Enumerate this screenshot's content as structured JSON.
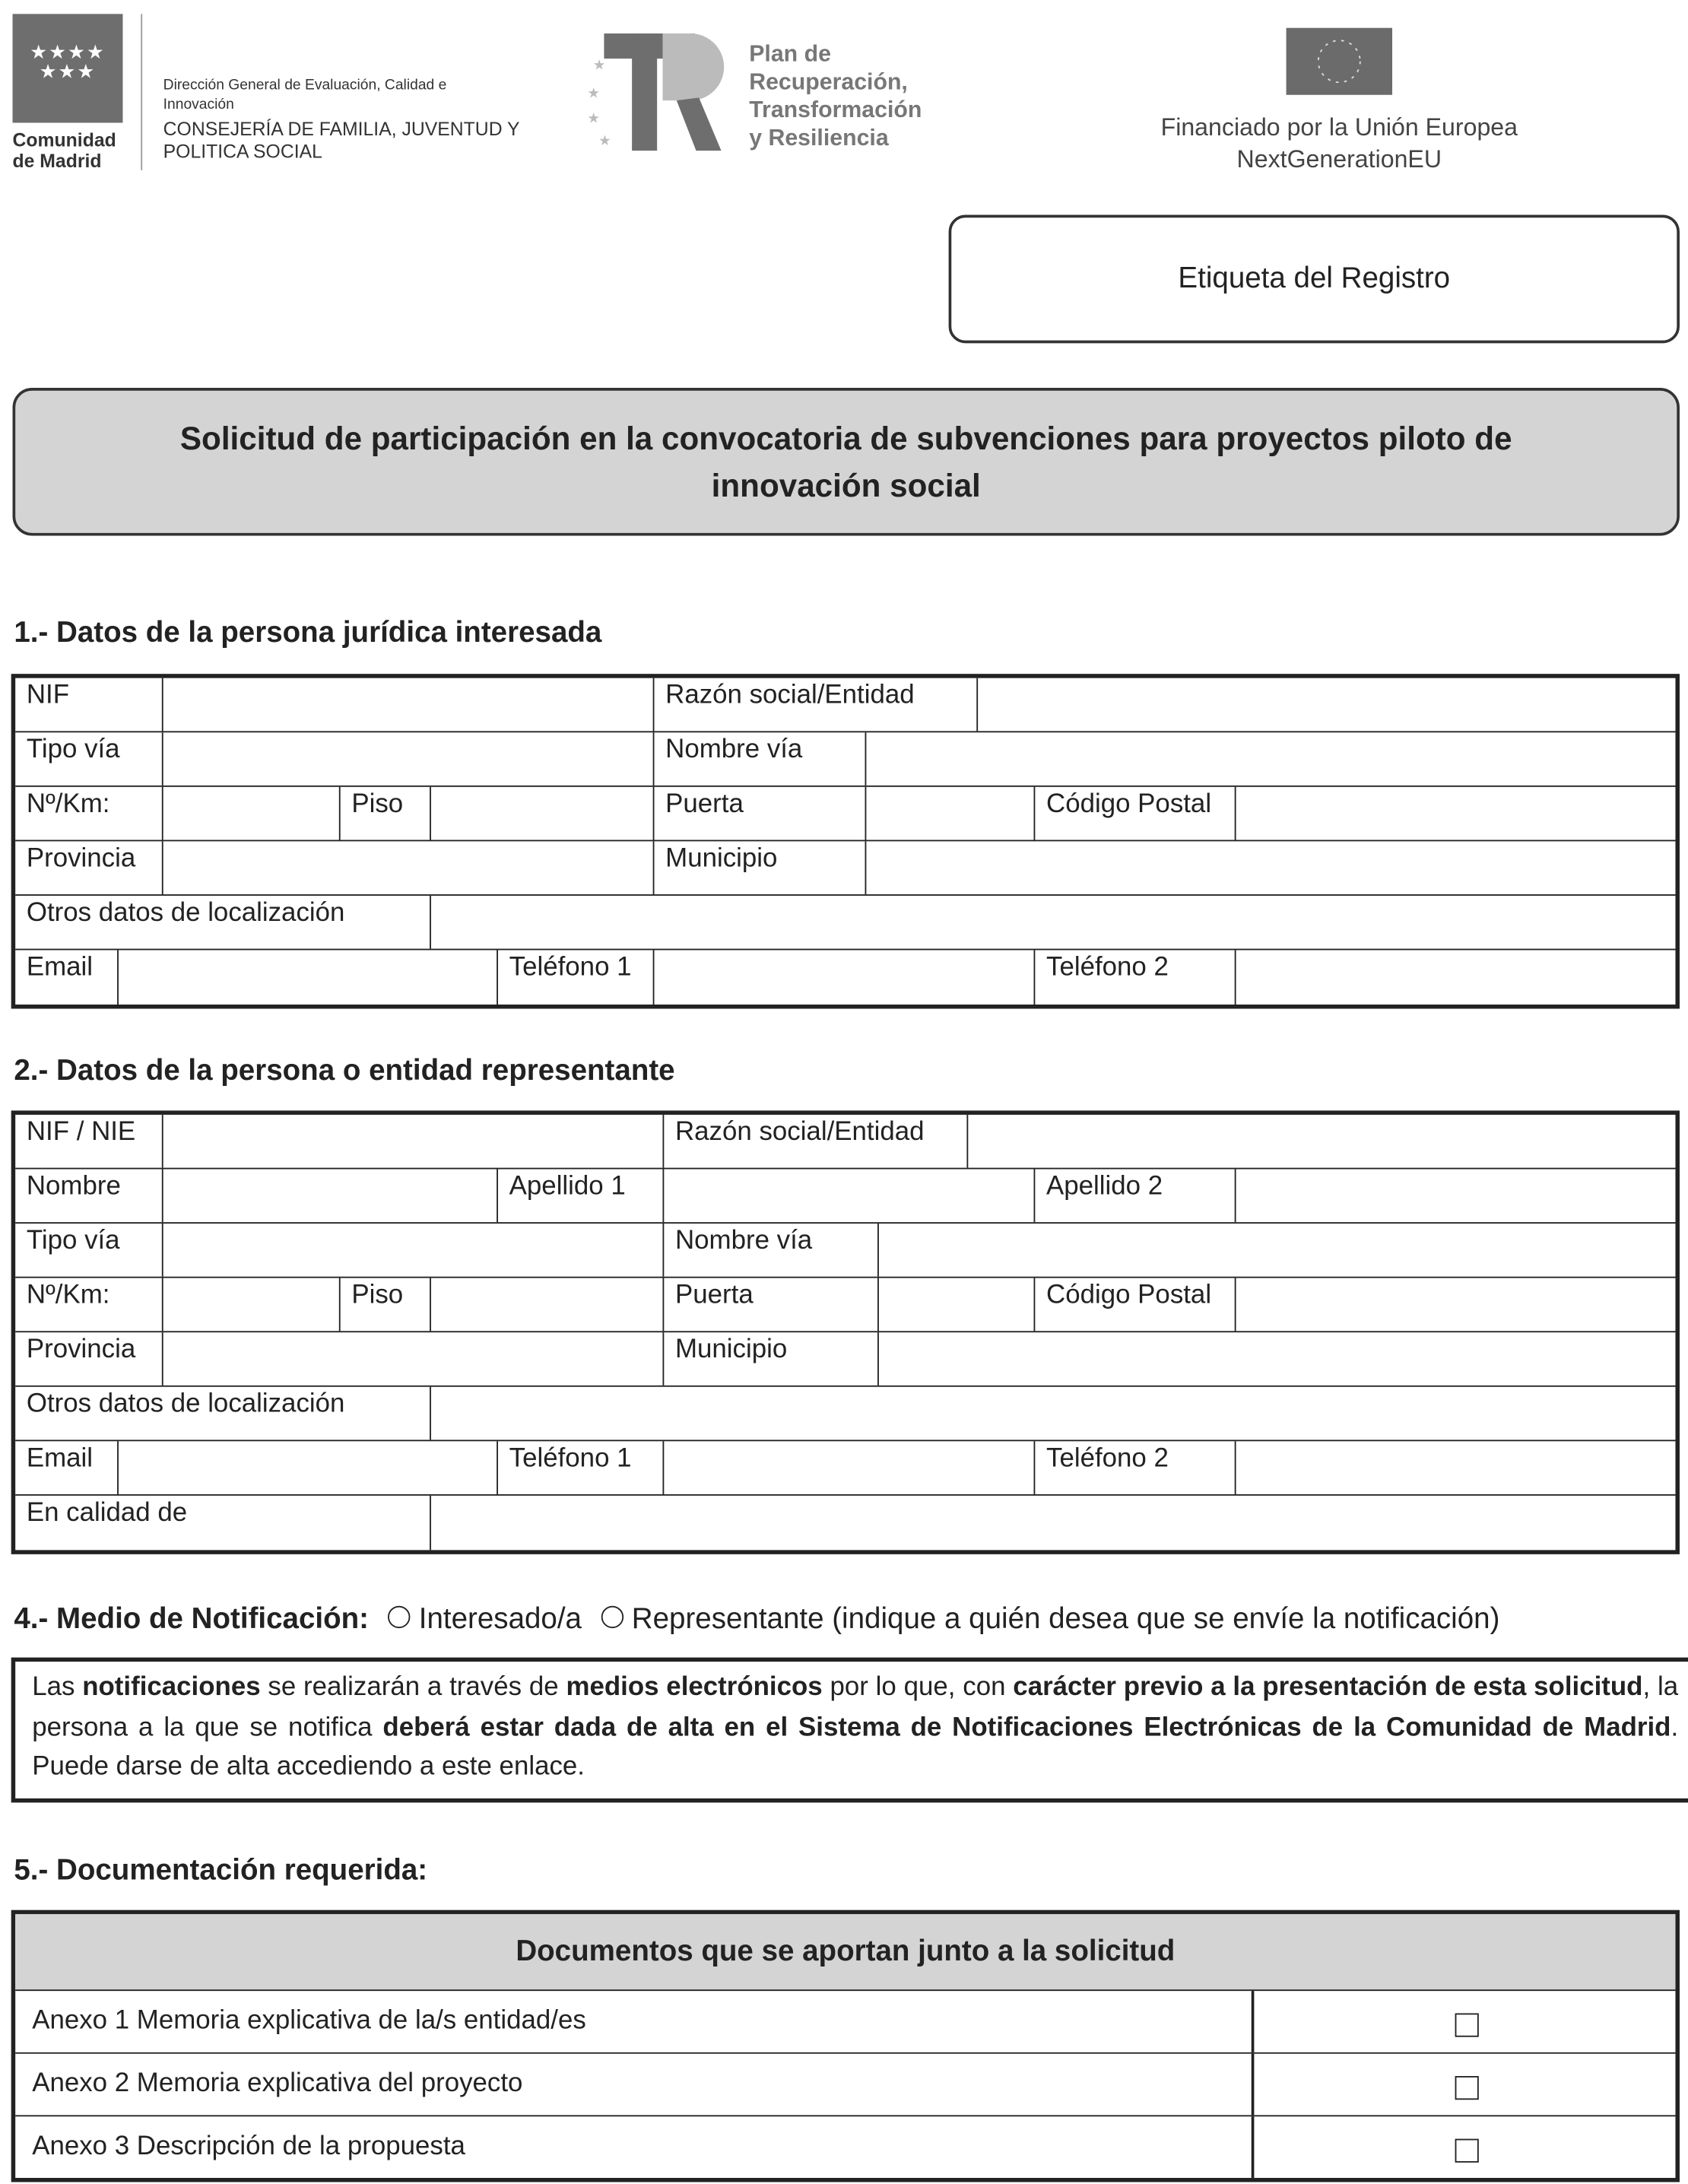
{
  "header": {
    "madrid_logo": {
      "name_line1": "Comunidad",
      "name_line2": "de Madrid",
      "stars": "★★★★ ★★★"
    },
    "direccion_line1": "Dirección General de Evaluación, Calidad e",
    "direccion_line2": "Innovación",
    "consejeria_line1": "CONSEJERÍA DE FAMILIA, JUVENTUD Y",
    "consejeria_line2": "POLITICA SOCIAL",
    "prtr_logo": {
      "line1": "Plan de",
      "line2": "Recuperación,",
      "line3": "Transformación",
      "line4": "y Resiliencia"
    },
    "eu_logo": {
      "line1": "Financiado por la Unión Europea",
      "line2": "NextGenerationEU"
    }
  },
  "registry_label": "Etiqueta del Registro",
  "title_line1": "Solicitud de participación en la convocatoria de subvenciones para proyectos piloto de",
  "title_line2": "innovación social",
  "section1": {
    "heading": "1.- Datos de la persona jurídica interesada",
    "rows": [
      [
        "NIF",
        "",
        "Razón social/Entidad",
        ""
      ],
      [
        "Tipo vía",
        "",
        "Nombre vía",
        ""
      ],
      [
        "Nº/Km:",
        "",
        "Piso",
        "",
        "Puerta",
        "",
        "Código Postal",
        ""
      ],
      [
        "Provincia",
        "",
        "Municipio",
        ""
      ],
      [
        "Otros datos de localización",
        ""
      ],
      [
        "Email",
        "",
        "Teléfono 1",
        "",
        "Teléfono 2",
        ""
      ]
    ]
  },
  "section2": {
    "heading": "2.- Datos de la persona o entidad representante",
    "rows": [
      [
        "NIF / NIE",
        "",
        "Razón social/Entidad",
        ""
      ],
      [
        "Nombre",
        "",
        "Apellido 1",
        "",
        "Apellido 2",
        ""
      ],
      [
        "Tipo vía",
        "",
        "Nombre vía",
        ""
      ],
      [
        "Nº/Km:",
        "",
        "Piso",
        "",
        "Puerta",
        "",
        "Código Postal",
        ""
      ],
      [
        "Provincia",
        "",
        "Municipio",
        ""
      ],
      [
        "Otros datos de localización",
        ""
      ],
      [
        "Email",
        "",
        "Teléfono 1",
        "",
        "Teléfono 2",
        ""
      ],
      [
        "En calidad de",
        ""
      ]
    ]
  },
  "section4": {
    "heading": "4.- Medio de Notificación:",
    "option1": "Interesado/a",
    "option2": "Representante (indique a quién desea que se envíe la notificación)",
    "notice": [
      {
        "t": "Las ",
        "b": false
      },
      {
        "t": "notificaciones",
        "b": true
      },
      {
        "t": " se realizarán a través de ",
        "b": false
      },
      {
        "t": "medios electrónicos",
        "b": true
      },
      {
        "t": " por lo que, con ",
        "b": false
      },
      {
        "t": "carácter previo a la presentación de esta solicitud",
        "b": true
      },
      {
        "t": ", la persona a la que se notifica ",
        "b": false
      },
      {
        "t": "deberá estar dada de alta en el Sistema de Notificaciones Electrónicas de la Comunidad de Madrid",
        "b": true
      },
      {
        "t": ". Puede darse de alta accediendo a este enlace.",
        "b": false
      }
    ]
  },
  "section5": {
    "heading": "5.- Documentación requerida:",
    "table_header": "Documentos que se aportan junto a la solicitud",
    "documents": [
      {
        "label": "Anexo 1 Memoria explicativa de la/s entidad/es",
        "checked": false
      },
      {
        "label": "Anexo 2 Memoria explicativa del proyecto",
        "checked": false
      },
      {
        "label": "Anexo 3 Descripción de la propuesta",
        "checked": false
      }
    ]
  }
}
